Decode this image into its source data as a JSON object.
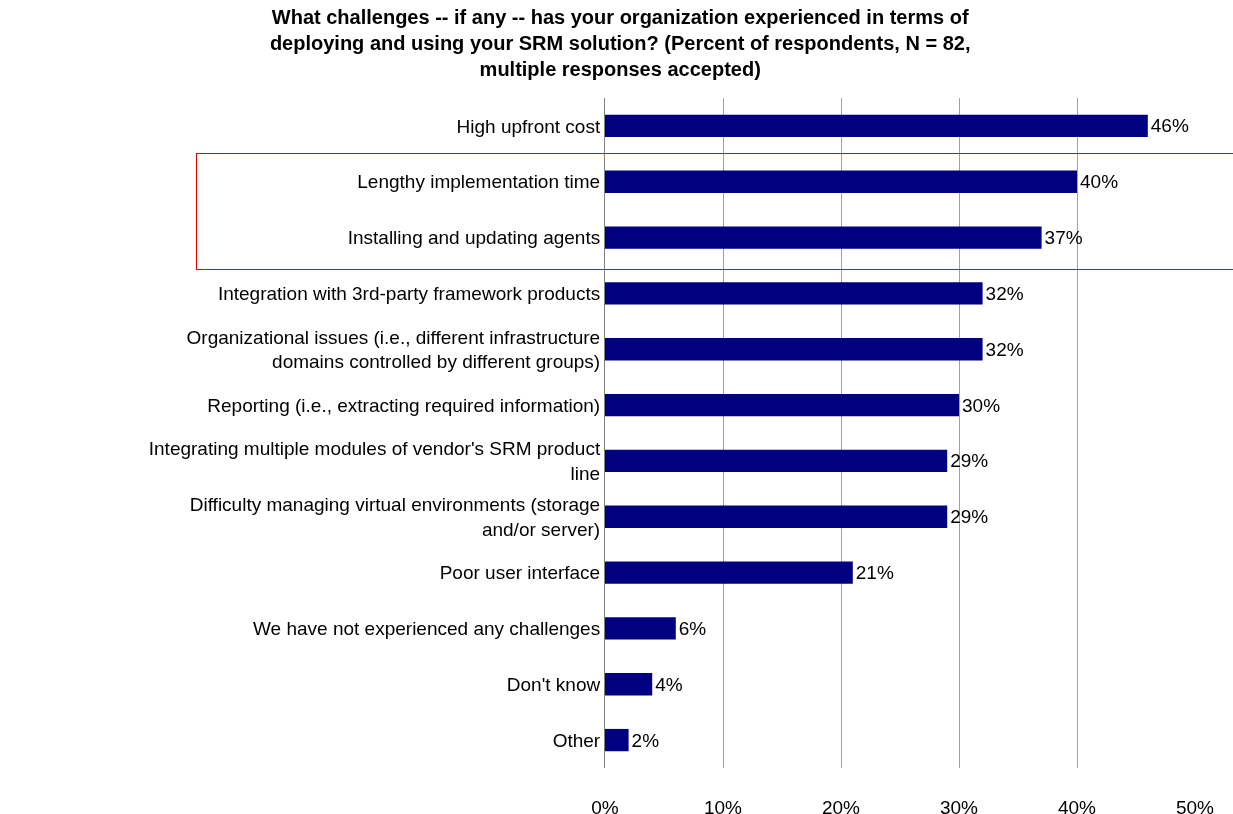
{
  "chart_data": {
    "type": "bar",
    "orientation": "horizontal",
    "title": "What challenges -- if any -- has your organization experienced in terms of\ndeploying and using your SRM solution? (Percent of respondents, N = 82,\nmultiple responses accepted)",
    "categories": [
      "High upfront cost",
      "Lengthy implementation time",
      "Installing and updating agents",
      "Integration with 3rd-party framework products",
      "Organizational issues (i.e., different infrastructure\ndomains controlled by different groups)",
      "Reporting (i.e., extracting required information)",
      "Integrating multiple modules of vendor's SRM product\nline",
      "Difficulty managing virtual environments (storage\nand/or server)",
      "Poor user interface",
      "We have not experienced any challenges",
      "Don't know",
      "Other"
    ],
    "values": [
      46,
      40,
      37,
      32,
      32,
      30,
      29,
      29,
      21,
      6,
      4,
      2
    ],
    "value_labels": [
      "46%",
      "40%",
      "37%",
      "32%",
      "32%",
      "30%",
      "29%",
      "29%",
      "21%",
      "6%",
      "4%",
      "2%"
    ],
    "color": "#000080",
    "xlim": [
      0,
      50
    ],
    "xticks": [
      {
        "value": 0,
        "label": "0%"
      },
      {
        "value": 10,
        "label": "10%"
      },
      {
        "value": 20,
        "label": "20%"
      },
      {
        "value": 30,
        "label": "30%"
      },
      {
        "value": 40,
        "label": "40%"
      },
      {
        "value": 50,
        "label": "50%"
      }
    ],
    "grid": "x",
    "legend": false
  }
}
